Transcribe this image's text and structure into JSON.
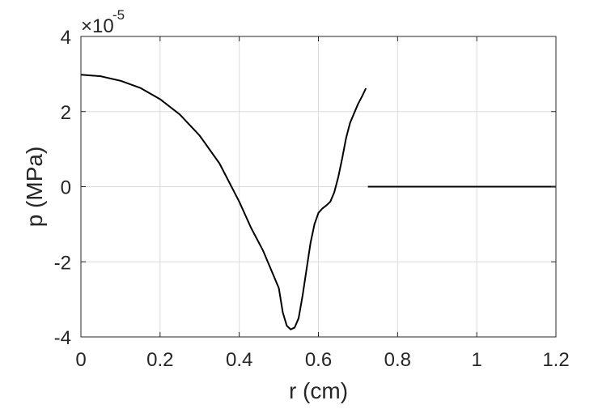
{
  "chart_data": {
    "type": "line",
    "title": "",
    "xlabel": "r (cm)",
    "ylabel": "p (MPa)",
    "y_exponent_label": "×10",
    "y_exponent_power": "-5",
    "xlim": [
      0,
      1.2
    ],
    "ylim": [
      -4,
      4
    ],
    "y_scale_factor": 1e-05,
    "x_ticks": [
      0,
      0.2,
      0.4,
      0.6,
      0.8,
      1,
      1.2
    ],
    "x_tick_labels": [
      "0",
      "0.2",
      "0.4",
      "0.6",
      "0.8",
      "1",
      "1.2"
    ],
    "y_ticks": [
      -4,
      -2,
      0,
      2,
      4
    ],
    "y_tick_labels": [
      "-4",
      "-2",
      "0",
      "2",
      "4"
    ],
    "grid": true,
    "colors": {
      "line": "#000000",
      "grid": "#dcdcdc",
      "axes": "#262626"
    },
    "series": [
      {
        "x": [
          0.0,
          0.05,
          0.1,
          0.15,
          0.2,
          0.25,
          0.3,
          0.35,
          0.4,
          0.43,
          0.46,
          0.48,
          0.5,
          0.51,
          0.52,
          0.53,
          0.54,
          0.55,
          0.56,
          0.57,
          0.58,
          0.59,
          0.6,
          0.61,
          0.62,
          0.63,
          0.64,
          0.65,
          0.66,
          0.67,
          0.68,
          0.69,
          0.7,
          0.71,
          0.72
        ],
        "y": [
          2.98,
          2.94,
          2.82,
          2.63,
          2.33,
          1.92,
          1.36,
          0.62,
          -0.4,
          -1.1,
          -1.7,
          -2.2,
          -2.7,
          -3.35,
          -3.7,
          -3.8,
          -3.75,
          -3.5,
          -2.9,
          -2.2,
          -1.5,
          -1.0,
          -0.7,
          -0.58,
          -0.5,
          -0.4,
          -0.15,
          0.25,
          0.75,
          1.3,
          1.7,
          1.95,
          2.2,
          2.4,
          2.62
        ]
      },
      {
        "x": [
          0.725,
          1.2
        ],
        "y": [
          0,
          0
        ]
      }
    ]
  }
}
